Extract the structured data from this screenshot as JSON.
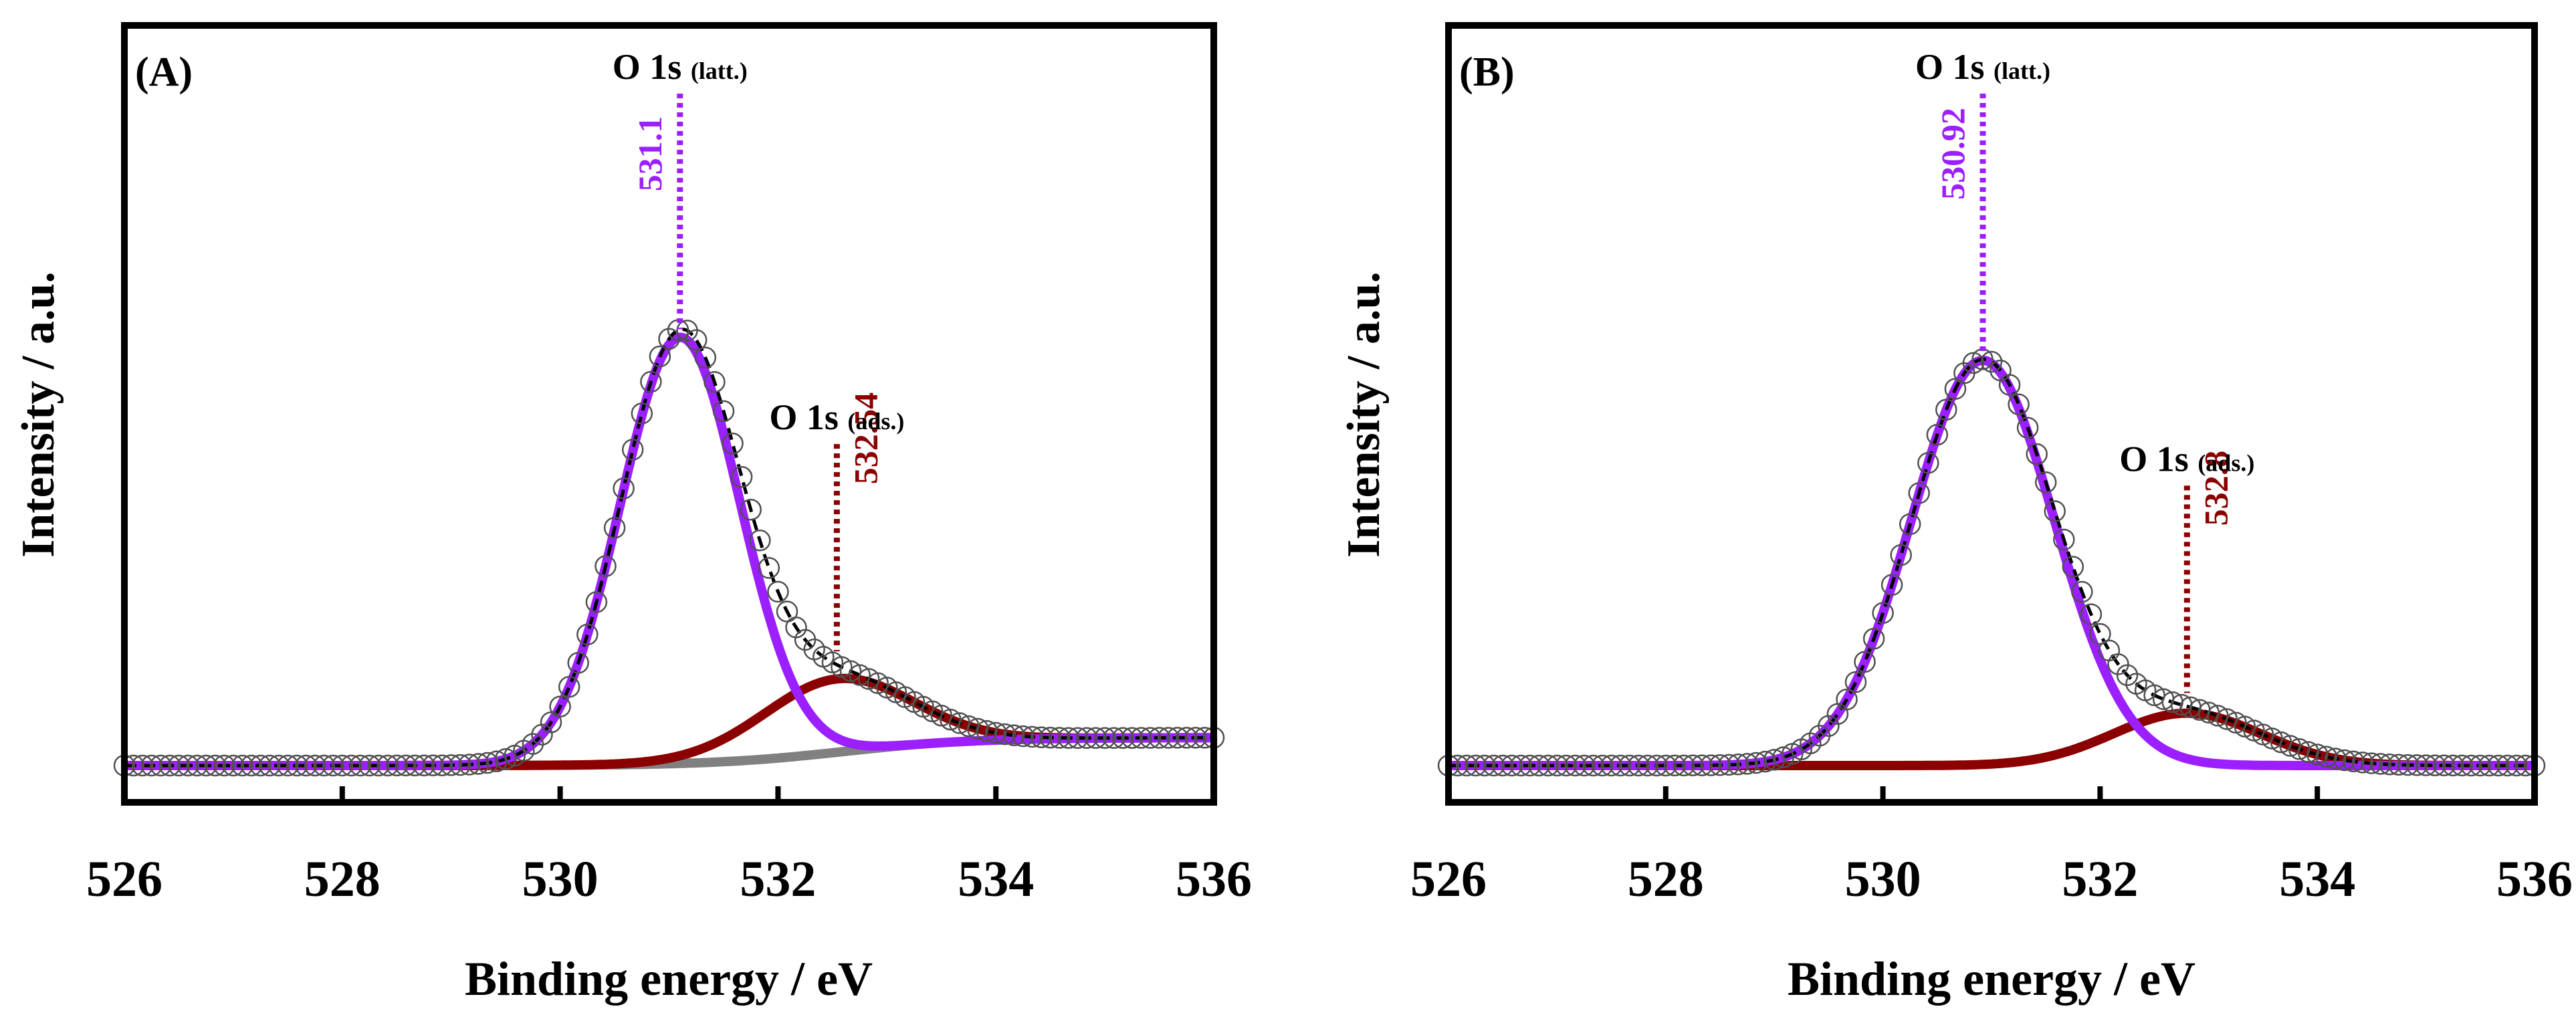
{
  "chart_data": [
    {
      "type": "line",
      "panel_label": "(A)",
      "xlabel": "Binding energy / eV",
      "ylabel": "Intensity / a.u.",
      "xlim": [
        526,
        536
      ],
      "ylim": [
        0,
        1.0
      ],
      "x_ticks": [
        "526",
        "528",
        "530",
        "532",
        "534",
        "536"
      ],
      "colors": {
        "lattice": "#9b1fff",
        "adsorbed": "#8b0000",
        "background": "#808080",
        "envelope": "#000000",
        "data": "#505050"
      },
      "peaks": [
        {
          "name": "O 1s",
          "sub": "(latt.)",
          "label": "531.1",
          "center": 531.1,
          "height": 0.61,
          "fwhm": 1.3,
          "baseline_at_peak": 0.005
        },
        {
          "name": "O 1s",
          "sub": "(ads.)",
          "label": "532.54",
          "center": 532.54,
          "height": 0.105,
          "fwhm": 1.6,
          "baseline_at_peak": 0.02
        }
      ],
      "background": {
        "start": 0.0,
        "end": 0.04,
        "center": 532.6,
        "width": 0.6
      },
      "series": [
        {
          "name": "Experimental data",
          "style": "open-circles"
        },
        {
          "name": "Envelope fit",
          "style": "dashed"
        },
        {
          "name": "O 1s (latt.) component",
          "style": "solid"
        },
        {
          "name": "O 1s (ads.) component",
          "style": "solid"
        },
        {
          "name": "Background",
          "style": "solid"
        }
      ]
    },
    {
      "type": "line",
      "panel_label": "(B)",
      "xlabel": "Binding energy / eV",
      "ylabel": "Intensity / a.u.",
      "xlim": [
        526,
        536
      ],
      "ylim": [
        0,
        1.0
      ],
      "x_ticks": [
        "526",
        "528",
        "530",
        "532",
        "534",
        "536"
      ],
      "colors": {
        "lattice": "#9b1fff",
        "adsorbed": "#8b0000",
        "background": "#808080",
        "envelope": "#000000",
        "data": "#505050"
      },
      "peaks": [
        {
          "name": "O 1s",
          "sub": "(latt.)",
          "label": "530.92",
          "center": 530.92,
          "height": 0.58,
          "fwhm": 1.55,
          "baseline_at_peak": 0.0
        },
        {
          "name": "O 1s",
          "sub": "(ads.)",
          "label": "532.8",
          "center": 532.8,
          "height": 0.075,
          "fwhm": 1.6,
          "baseline_at_peak": 0.0
        }
      ],
      "background": {
        "start": 0.0,
        "end": 0.0,
        "center": 532.6,
        "width": 0.6
      },
      "series": [
        {
          "name": "Experimental data",
          "style": "open-circles"
        },
        {
          "name": "Envelope fit",
          "style": "dashed"
        },
        {
          "name": "O 1s (latt.) component",
          "style": "solid"
        },
        {
          "name": "O 1s (ads.) component",
          "style": "solid"
        }
      ]
    }
  ]
}
